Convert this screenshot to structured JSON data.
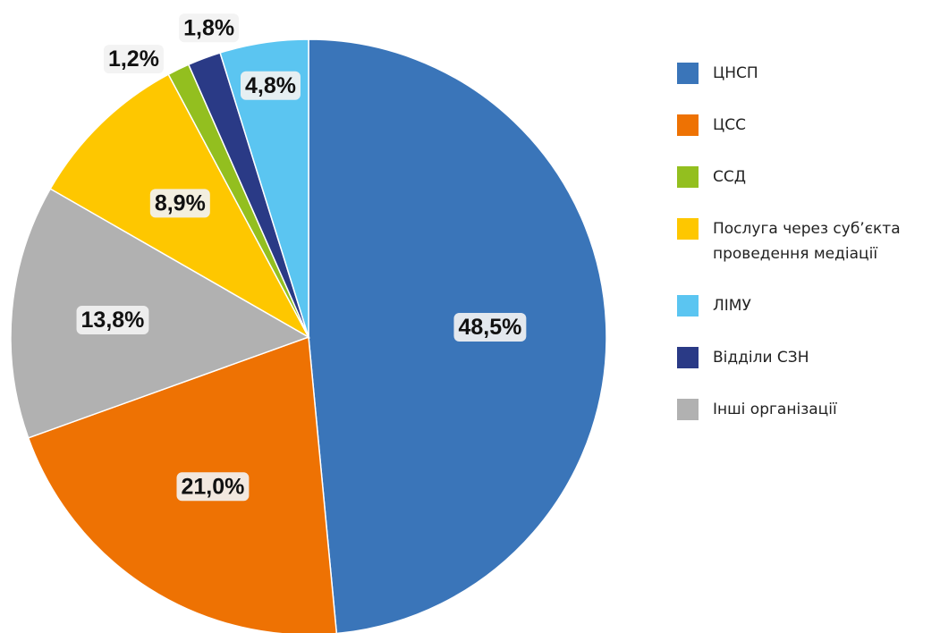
{
  "chart_data": {
    "type": "pie",
    "categories": [
      "ЦНСП",
      "ЦСС",
      "ССД",
      "Послуга через суб’єкта проведення медіації",
      "ЛІМУ",
      "Відділи СЗН",
      "Інші організації"
    ],
    "values": [
      48.5,
      21.0,
      1.2,
      8.9,
      4.8,
      1.8,
      13.8
    ],
    "value_labels": [
      "48,5%",
      "21,0%",
      "1,2%",
      "8,9%",
      "4,8%",
      "1,8%",
      "13,8%"
    ],
    "colors": [
      "#3a75b9",
      "#ee7203",
      "#93bf1f",
      "#fec700",
      "#5bc5f1",
      "#2a3a86",
      "#b1b1b1"
    ],
    "legend": "right"
  }
}
